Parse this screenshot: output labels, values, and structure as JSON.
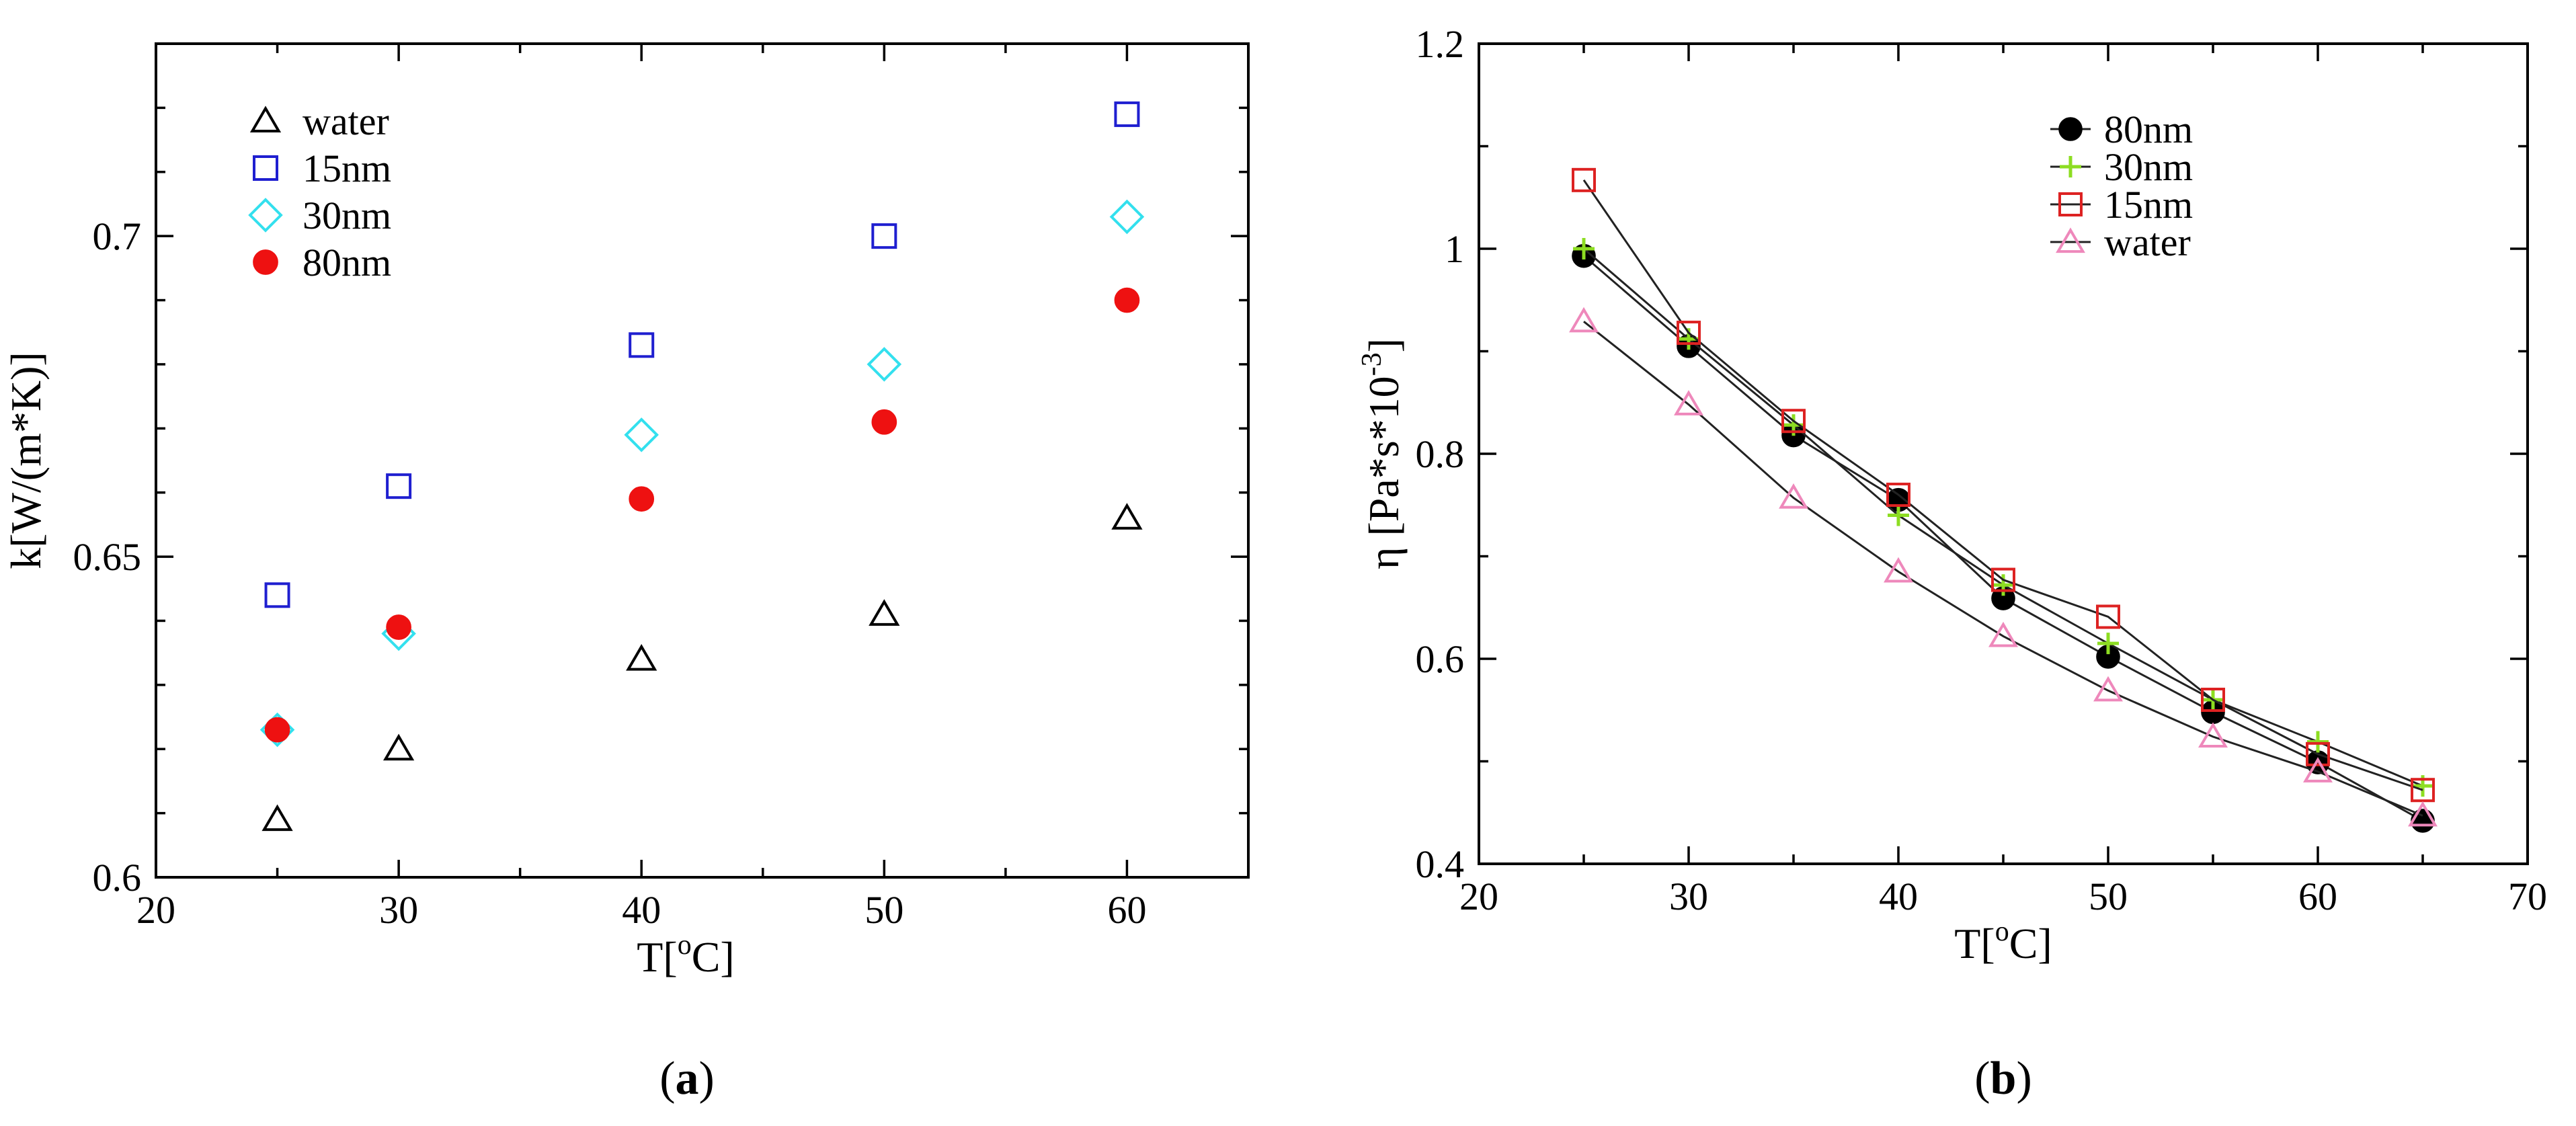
{
  "chart_data": [
    {
      "type": "scatter",
      "panel_label": "a",
      "xlabel": "T[oC]",
      "xlabel_parts": {
        "base": "T[",
        "sup": "o",
        "end": "C]"
      },
      "ylabel": "k[W/(m*K)]",
      "xlim": [
        20,
        65
      ],
      "ylim": [
        0.6,
        0.73
      ],
      "x_ticks": [
        20,
        30,
        40,
        50,
        60
      ],
      "x_tick_labels": [
        "20",
        "30",
        "40",
        "50",
        "60"
      ],
      "y_ticks": [
        0.6,
        0.65,
        0.7
      ],
      "y_tick_labels": [
        "0.6",
        "0.65",
        "0.7"
      ],
      "legend_position": "top-left",
      "series": [
        {
          "name": "water",
          "marker": "triangle",
          "filled": false,
          "color": "#000000",
          "x": [
            25,
            30,
            40,
            50,
            60
          ],
          "y": [
            0.609,
            0.62,
            0.634,
            0.641,
            0.656
          ]
        },
        {
          "name": "15nm",
          "marker": "square",
          "filled": false,
          "color": "#1f1fd0",
          "x": [
            25,
            30,
            40,
            50,
            60
          ],
          "y": [
            0.644,
            0.661,
            0.683,
            0.7,
            0.719
          ]
        },
        {
          "name": "30nm",
          "marker": "diamond",
          "filled": false,
          "color": "#33e0ee",
          "x": [
            25,
            30,
            40,
            50,
            60
          ],
          "y": [
            0.623,
            0.638,
            0.669,
            0.68,
            0.703
          ]
        },
        {
          "name": "80nm",
          "marker": "circle",
          "filled": true,
          "color": "#ee1111",
          "x": [
            25,
            30,
            40,
            50,
            60
          ],
          "y": [
            0.623,
            0.639,
            0.659,
            0.671,
            0.69
          ]
        }
      ]
    },
    {
      "type": "line",
      "panel_label": "b",
      "xlabel": "T[oC]",
      "xlabel_parts": {
        "base": "T[",
        "sup": "o",
        "end": "C]"
      },
      "ylabel": "η [Pa*s*10-3]",
      "ylabel_parts": {
        "base": "η [Pa*s*10",
        "sup": "-3",
        "end": "]"
      },
      "xlim": [
        20,
        70
      ],
      "ylim": [
        0.4,
        1.2
      ],
      "x_ticks": [
        20,
        30,
        40,
        50,
        60,
        70
      ],
      "x_tick_labels": [
        "20",
        "30",
        "40",
        "50",
        "60",
        "70"
      ],
      "y_ticks": [
        0.4,
        0.6,
        0.8,
        1.0,
        1.2
      ],
      "y_tick_labels": [
        "0.4",
        "0.6",
        "0.8",
        "1",
        "1.2"
      ],
      "legend_position": "top-right",
      "series": [
        {
          "name": "80nm",
          "marker": "circle",
          "filled": true,
          "color": "#000000",
          "x": [
            25,
            30,
            35,
            40,
            45,
            50,
            55,
            60,
            65
          ],
          "y": [
            0.993,
            0.905,
            0.818,
            0.755,
            0.659,
            0.602,
            0.548,
            0.499,
            0.442
          ]
        },
        {
          "name": "30nm",
          "marker": "plus",
          "filled": false,
          "color": "#8ddd22",
          "x": [
            25,
            30,
            35,
            40,
            45,
            50,
            55,
            60,
            65
          ],
          "y": [
            1.0,
            0.912,
            0.828,
            0.74,
            0.672,
            0.615,
            0.56,
            0.519,
            0.476
          ]
        },
        {
          "name": "15nm",
          "marker": "square",
          "filled": false,
          "color": "#dd2222",
          "x": [
            25,
            30,
            35,
            40,
            45,
            50,
            55,
            60,
            65
          ],
          "y": [
            1.067,
            0.918,
            0.832,
            0.76,
            0.677,
            0.641,
            0.56,
            0.507,
            0.472
          ]
        },
        {
          "name": "water",
          "marker": "triangle",
          "filled": false,
          "color": "#ee88bb",
          "x": [
            25,
            30,
            35,
            40,
            45,
            50,
            55,
            60,
            65
          ],
          "y": [
            0.929,
            0.848,
            0.757,
            0.685,
            0.622,
            0.569,
            0.524,
            0.49,
            0.447
          ]
        }
      ]
    }
  ],
  "captions": {
    "a": "a",
    "b": "b"
  }
}
